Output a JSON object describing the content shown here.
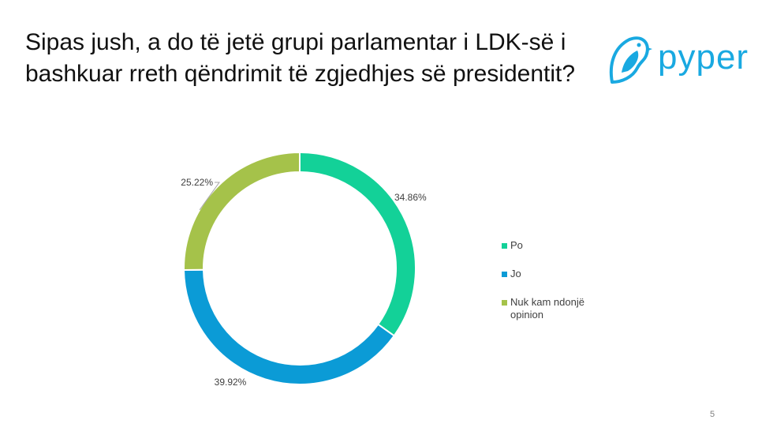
{
  "slide": {
    "title": "Sipas jush, a do të jetë grupi parlamentar i LDK-së i bashkuar rreth qëndrimit të zgjedhjes së presidentit?",
    "page_number": "5"
  },
  "logo": {
    "text": "pyper",
    "color": "#19a9e1",
    "icon": "bird-icon"
  },
  "chart_data": {
    "type": "pie",
    "style": "donut",
    "title": "",
    "legend_placement": "right",
    "slices": [
      {
        "name": "Po",
        "value": 34.86,
        "label": "34.86%",
        "color": "#13d198"
      },
      {
        "name": "Jo",
        "value": 39.92,
        "label": "39.92%",
        "color": "#0b9bd6"
      },
      {
        "name": "Nuk kam ndonjë opinion",
        "value": 25.22,
        "label": "25.22%",
        "color": "#a5c24a"
      }
    ]
  }
}
